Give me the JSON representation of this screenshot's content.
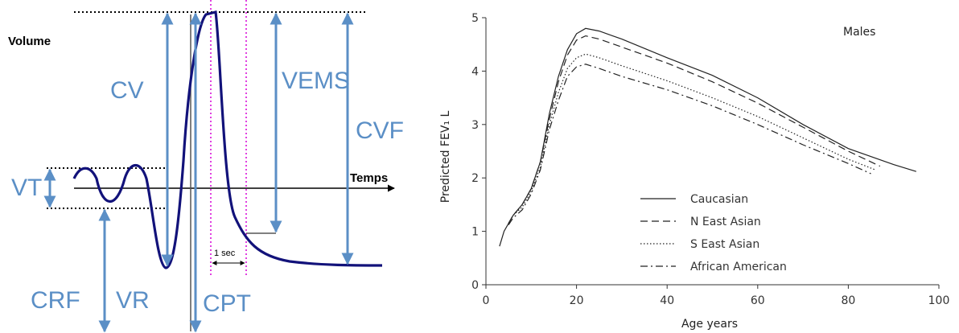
{
  "spirometry": {
    "volume_label": "Volume",
    "time_label": "Temps",
    "one_sec_label": "1 sec",
    "labels": {
      "cv": "CV",
      "vems": "VEMS",
      "cvf": "CVF",
      "vt": "VT",
      "crf": "CRF",
      "vr": "VR",
      "cpt": "CPT"
    },
    "colors": {
      "arrow": "#5b8fc6",
      "curve": "#12127a",
      "guide": "#e040e0"
    }
  },
  "chart_data": {
    "type": "line",
    "title": "Males",
    "xlabel": "Age years",
    "ylabel": "Predicted FEV₁ L",
    "xlim": [
      0,
      100
    ],
    "ylim": [
      0,
      5
    ],
    "xticks": [
      "0",
      "20",
      "40",
      "60",
      "80",
      "100"
    ],
    "yticks": [
      "0",
      "1",
      "2",
      "3",
      "4",
      "5"
    ],
    "legend_position": "bottom-center",
    "series": [
      {
        "name": "Caucasian",
        "dash": "solid",
        "points": [
          [
            3,
            0.72
          ],
          [
            4,
            1.0
          ],
          [
            6,
            1.3
          ],
          [
            8,
            1.5
          ],
          [
            10,
            1.8
          ],
          [
            12,
            2.3
          ],
          [
            14,
            3.2
          ],
          [
            16,
            3.9
          ],
          [
            18,
            4.4
          ],
          [
            20,
            4.7
          ],
          [
            22,
            4.8
          ],
          [
            25,
            4.75
          ],
          [
            30,
            4.6
          ],
          [
            40,
            4.25
          ],
          [
            50,
            3.92
          ],
          [
            60,
            3.5
          ],
          [
            70,
            3.0
          ],
          [
            80,
            2.55
          ],
          [
            90,
            2.25
          ],
          [
            95,
            2.12
          ]
        ]
      },
      {
        "name": "N East Asian",
        "dash": "dashed",
        "points": [
          [
            5,
            1.15
          ],
          [
            6,
            1.3
          ],
          [
            8,
            1.5
          ],
          [
            10,
            1.8
          ],
          [
            12,
            2.3
          ],
          [
            14,
            3.1
          ],
          [
            16,
            3.8
          ],
          [
            18,
            4.3
          ],
          [
            20,
            4.58
          ],
          [
            22,
            4.66
          ],
          [
            25,
            4.6
          ],
          [
            30,
            4.45
          ],
          [
            40,
            4.15
          ],
          [
            50,
            3.8
          ],
          [
            60,
            3.4
          ],
          [
            70,
            2.95
          ],
          [
            80,
            2.5
          ],
          [
            87,
            2.22
          ]
        ]
      },
      {
        "name": "S East Asian",
        "dash": "dotted",
        "points": [
          [
            5,
            1.15
          ],
          [
            6,
            1.3
          ],
          [
            8,
            1.45
          ],
          [
            10,
            1.75
          ],
          [
            12,
            2.2
          ],
          [
            14,
            3.0
          ],
          [
            16,
            3.6
          ],
          [
            18,
            4.05
          ],
          [
            20,
            4.25
          ],
          [
            22,
            4.32
          ],
          [
            25,
            4.25
          ],
          [
            30,
            4.1
          ],
          [
            40,
            3.82
          ],
          [
            50,
            3.5
          ],
          [
            60,
            3.15
          ],
          [
            70,
            2.75
          ],
          [
            80,
            2.35
          ],
          [
            86,
            2.15
          ]
        ]
      },
      {
        "name": "African American",
        "dash": "dashdot",
        "points": [
          [
            5,
            1.12
          ],
          [
            6,
            1.25
          ],
          [
            8,
            1.4
          ],
          [
            10,
            1.7
          ],
          [
            12,
            2.15
          ],
          [
            14,
            2.9
          ],
          [
            16,
            3.45
          ],
          [
            18,
            3.9
          ],
          [
            20,
            4.08
          ],
          [
            22,
            4.13
          ],
          [
            25,
            4.05
          ],
          [
            30,
            3.9
          ],
          [
            40,
            3.65
          ],
          [
            50,
            3.35
          ],
          [
            60,
            3.0
          ],
          [
            70,
            2.62
          ],
          [
            80,
            2.27
          ],
          [
            85,
            2.08
          ]
        ]
      }
    ]
  }
}
